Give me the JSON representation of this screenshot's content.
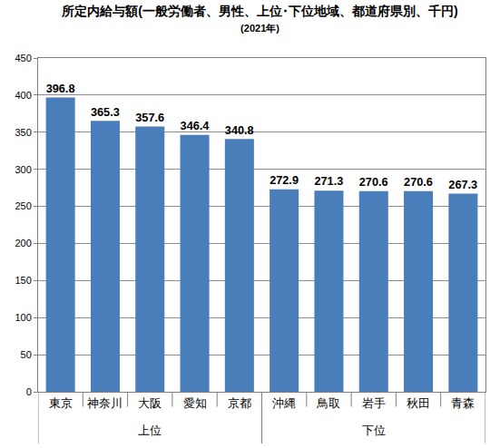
{
  "chart_data": {
    "type": "bar",
    "title": "所定内給与額(一般労働者、男性、上位･下位地域、都道府県別、千円)",
    "subtitle": "(2021年)",
    "categories": [
      "東京",
      "神奈川",
      "大阪",
      "愛知",
      "京都",
      "沖縄",
      "鳥取",
      "岩手",
      "秋田",
      "青森"
    ],
    "values": [
      396.8,
      365.3,
      357.6,
      346.4,
      340.8,
      272.9,
      271.3,
      270.6,
      270.6,
      267.3
    ],
    "value_labels": [
      "396.8",
      "365.3",
      "357.6",
      "346.4",
      "340.8",
      "272.9",
      "271.3",
      "270.6",
      "270.6",
      "267.3"
    ],
    "groups": [
      {
        "label": "上位",
        "from": "東京",
        "to": "京都"
      },
      {
        "label": "下位",
        "from": "沖縄",
        "to": "青森"
      }
    ],
    "color": "#4a7ebb",
    "ylim": [
      0,
      450
    ],
    "yticks": [
      0,
      50,
      100,
      150,
      200,
      250,
      300,
      350,
      400,
      450
    ],
    "grid": true,
    "data_labels": true
  }
}
